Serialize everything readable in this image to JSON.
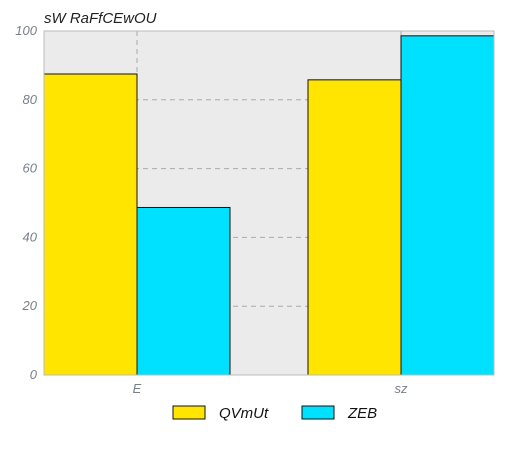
{
  "chart_data": {
    "type": "bar",
    "title": "sW RaFfCEwOU",
    "categories": [
      "E",
      "sz"
    ],
    "series": [
      {
        "name": "QVmUt",
        "values": [
          87.5,
          85.8
        ],
        "color": "#FFE500"
      },
      {
        "name": "ZEB",
        "values": [
          48.7,
          98.6
        ],
        "color": "#00E1FF"
      }
    ],
    "ylim": [
      0,
      100
    ],
    "yticks": [
      0,
      20,
      40,
      60,
      80,
      100
    ],
    "xlabel": "",
    "ylabel": "",
    "grid": true,
    "legend": "bottom-center",
    "colors": {
      "plot_background": "#EBEBEB",
      "grid": "#AAAAAA"
    }
  }
}
